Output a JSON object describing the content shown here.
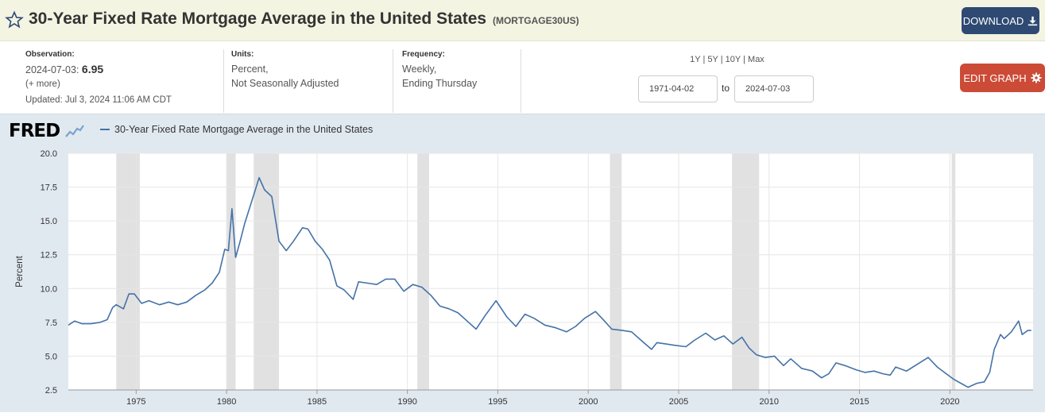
{
  "header": {
    "title": "30-Year Fixed Rate Mortgage Average in the United States",
    "series_id": "(MORTGAGE30US)",
    "download_label": "DOWNLOAD"
  },
  "meta": {
    "observation_label": "Observation:",
    "observation_date": "2024-07-03:",
    "observation_value": "6.95",
    "more": "(+ more)",
    "updated": "Updated: Jul 3, 2024 11:06 AM CDT",
    "units_label": "Units:",
    "units_line1": "Percent,",
    "units_line2": "Not Seasonally Adjusted",
    "frequency_label": "Frequency:",
    "frequency_line1": "Weekly,",
    "frequency_line2": "Ending Thursday"
  },
  "range": {
    "links": [
      "1Y",
      "5Y",
      "10Y",
      "Max"
    ],
    "start": "1971-04-02",
    "to": "to",
    "end": "2024-07-03"
  },
  "edit_label": "EDIT GRAPH",
  "logo_text": "FRED",
  "colors": {
    "series": "#4572a7",
    "recession": "#e1e1e1",
    "header_bg": "#f4f4e3",
    "download": "#2e4a72",
    "edit": "#cc4b37"
  },
  "chart_data": {
    "type": "line",
    "title": "30-Year Fixed Rate Mortgage Average in the United States",
    "xlabel": "",
    "ylabel": "Percent",
    "xlim": [
      1971.25,
      2024.6
    ],
    "ylim": [
      2.5,
      20.0
    ],
    "yticks": [
      2.5,
      5.0,
      7.5,
      10.0,
      12.5,
      15.0,
      17.5,
      20.0
    ],
    "ytick_labels": [
      "2.5",
      "5.0",
      "7.5",
      "10.0",
      "12.5",
      "15.0",
      "17.5",
      "20.0"
    ],
    "xticks": [
      1975,
      1980,
      1985,
      1990,
      1995,
      2000,
      2005,
      2010,
      2015,
      2020
    ],
    "xtick_labels": [
      "1975",
      "1980",
      "1985",
      "1990",
      "1995",
      "2000",
      "2005",
      "2010",
      "2015",
      "2020"
    ],
    "grid": true,
    "recessions": [
      [
        1973.9,
        1975.2
      ],
      [
        1980.0,
        1980.5
      ],
      [
        1981.5,
        1982.9
      ],
      [
        1990.55,
        1991.2
      ],
      [
        2001.2,
        2001.85
      ],
      [
        2007.95,
        2009.45
      ],
      [
        2020.1,
        2020.3
      ]
    ],
    "series": [
      {
        "name": "30-Year Fixed Rate Mortgage Average in the United States",
        "x": [
          1971.25,
          1971.6,
          1972.0,
          1972.5,
          1973.0,
          1973.4,
          1973.7,
          1973.9,
          1974.3,
          1974.6,
          1974.9,
          1975.3,
          1975.7,
          1976.3,
          1976.8,
          1977.3,
          1977.8,
          1978.3,
          1978.8,
          1979.2,
          1979.6,
          1979.9,
          1980.1,
          1980.3,
          1980.5,
          1980.75,
          1981.0,
          1981.4,
          1981.8,
          1982.1,
          1982.5,
          1982.9,
          1983.3,
          1983.7,
          1984.2,
          1984.5,
          1984.9,
          1985.3,
          1985.7,
          1986.1,
          1986.5,
          1987.0,
          1987.3,
          1987.8,
          1988.3,
          1988.8,
          1989.3,
          1989.8,
          1990.3,
          1990.8,
          1991.3,
          1991.8,
          1992.3,
          1992.8,
          1993.3,
          1993.8,
          1994.3,
          1994.9,
          1995.5,
          1996.0,
          1996.5,
          1997.0,
          1997.6,
          1998.2,
          1998.8,
          1999.3,
          1999.8,
          2000.4,
          2000.9,
          2001.3,
          2001.9,
          2002.4,
          2002.9,
          2003.5,
          2003.8,
          2004.3,
          2004.8,
          2005.4,
          2005.9,
          2006.5,
          2007.0,
          2007.5,
          2008.0,
          2008.5,
          2008.9,
          2009.3,
          2009.8,
          2010.3,
          2010.8,
          2011.2,
          2011.8,
          2012.4,
          2012.9,
          2013.3,
          2013.7,
          2014.2,
          2014.8,
          2015.3,
          2015.8,
          2016.3,
          2016.7,
          2017.0,
          2017.6,
          2018.2,
          2018.8,
          2019.3,
          2019.8,
          2020.2,
          2020.6,
          2021.0,
          2021.5,
          2021.9,
          2022.2,
          2022.45,
          2022.8,
          2023.0,
          2023.4,
          2023.8,
          2024.0,
          2024.3,
          2024.5
        ],
        "values": [
          7.3,
          7.6,
          7.4,
          7.4,
          7.5,
          7.7,
          8.6,
          8.8,
          8.5,
          9.6,
          9.6,
          8.9,
          9.1,
          8.8,
          9.0,
          8.8,
          9.0,
          9.5,
          9.9,
          10.4,
          11.2,
          12.9,
          12.8,
          15.9,
          12.3,
          13.5,
          14.8,
          16.5,
          18.2,
          17.3,
          16.8,
          13.5,
          12.8,
          13.5,
          14.5,
          14.4,
          13.5,
          12.9,
          12.1,
          10.2,
          9.9,
          9.2,
          10.5,
          10.4,
          10.3,
          10.7,
          10.7,
          9.8,
          10.3,
          10.1,
          9.5,
          8.7,
          8.5,
          8.2,
          7.6,
          7.0,
          8.0,
          9.1,
          7.9,
          7.2,
          8.1,
          7.8,
          7.3,
          7.1,
          6.8,
          7.2,
          7.8,
          8.3,
          7.6,
          7.0,
          6.9,
          6.8,
          6.2,
          5.5,
          6.0,
          5.9,
          5.8,
          5.7,
          6.2,
          6.7,
          6.2,
          6.5,
          5.9,
          6.4,
          5.6,
          5.1,
          4.9,
          5.0,
          4.3,
          4.8,
          4.1,
          3.9,
          3.4,
          3.7,
          4.5,
          4.3,
          4.0,
          3.8,
          3.9,
          3.7,
          3.6,
          4.2,
          3.9,
          4.4,
          4.9,
          4.2,
          3.7,
          3.3,
          3.0,
          2.7,
          3.0,
          3.1,
          3.8,
          5.5,
          6.6,
          6.3,
          6.8,
          7.6,
          6.6,
          6.9,
          6.9
        ]
      }
    ]
  }
}
